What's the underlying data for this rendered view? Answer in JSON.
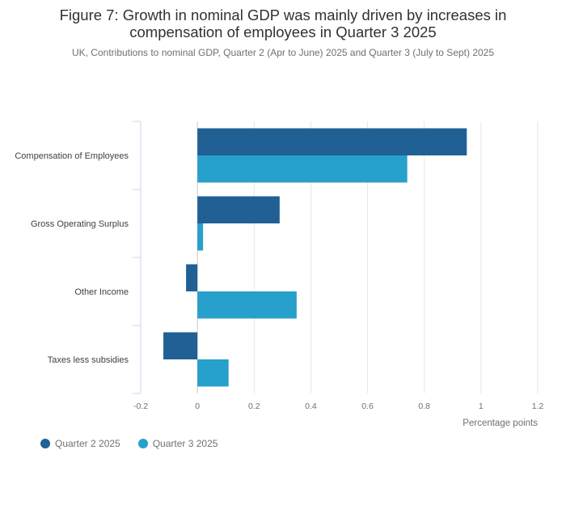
{
  "header": {
    "title_line1": "Figure 7: Growth in nominal GDP was mainly driven by increases in",
    "title_line2": "compensation of employees in Quarter 3 2025",
    "subtitle": "UK, Contributions to nominal GDP, Quarter 2 (Apr to June) 2025 and Quarter 3 (July to Sept) 2025"
  },
  "chart_data": {
    "type": "bar",
    "orientation": "horizontal",
    "title": "Figure 7: Growth in nominal GDP was mainly driven by increases in compensation of employees in Quarter 3 2025",
    "subtitle": "UK, Contributions to nominal GDP, Quarter 2 (Apr to June) 2025 and Quarter 3 (July to Sept) 2025",
    "categories": [
      "Compensation of Employees",
      "Gross Operating Surplus",
      "Other Income",
      "Taxes less subsidies"
    ],
    "series": [
      {
        "name": "Quarter 2 2025",
        "color": "#206095",
        "values": [
          0.95,
          0.29,
          -0.04,
          -0.12
        ]
      },
      {
        "name": "Quarter 3 2025",
        "color": "#27a0cc",
        "values": [
          0.74,
          0.02,
          0.35,
          0.11
        ]
      }
    ],
    "xlabel": "Percentage points",
    "ylabel": "",
    "xlim": [
      -0.2,
      1.2
    ],
    "xticks": [
      -0.2,
      0,
      0.2,
      0.4,
      0.6,
      0.8,
      1,
      1.2
    ],
    "xtick_labels": [
      "-0.2",
      "0",
      "0.2",
      "0.4",
      "0.6",
      "0.8",
      "1",
      "1.2"
    ],
    "grid": true,
    "legend_position": "bottom-left"
  },
  "legend": {
    "items": [
      {
        "label": "Quarter 2 2025",
        "color": "#206095"
      },
      {
        "label": "Quarter 3 2025",
        "color": "#27a0cc"
      }
    ]
  }
}
